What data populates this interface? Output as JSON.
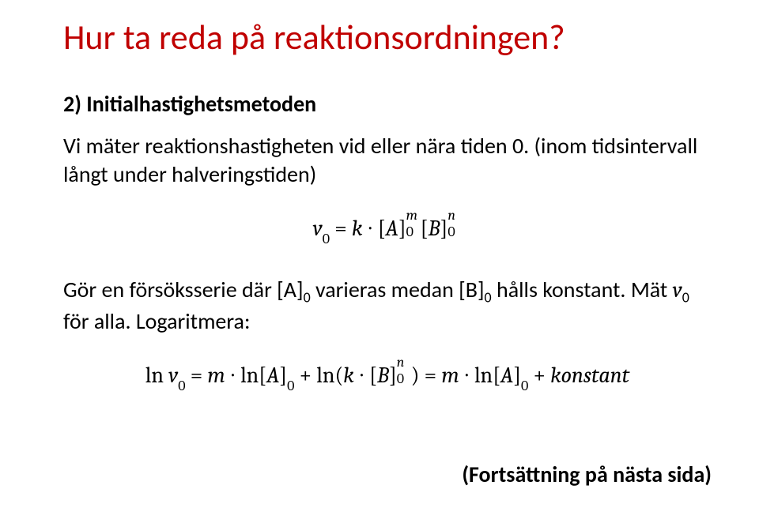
{
  "title": {
    "text": "Hur ta reda på reaktionsordningen?",
    "color": "#c00000",
    "fontsize": 44
  },
  "subheading": {
    "text": "2) Initialhastighetsmetoden",
    "fontsize": 28,
    "fontweight": "bold"
  },
  "para1": {
    "text": "Vi mäter reaktionshastigheten vid eller nära tiden 0. (inom tidsintervall långt under halveringstiden)",
    "fontsize": 28
  },
  "eq1": {
    "v": "v",
    "sub0a": "0",
    "eq": " = ",
    "k": "k",
    "dot1": " ∙ ",
    "lbA": "[",
    "A": "A",
    "rbA": "]",
    "A_sub": "0",
    "A_sup": "m",
    "lbB": "[",
    "B": "B",
    "rbB": "]",
    "B_sub": "0",
    "B_sup": "n"
  },
  "para2_a": "Gör en försöksserie där [A]",
  "para2_sub0a": "0",
  "para2_b": " varieras medan [B]",
  "para2_sub0b": "0",
  "para2_c": " hålls konstant. Mät ",
  "para2_v": "v",
  "para2_sub0c": "0",
  "para2_d": " för alla. Logaritmera:",
  "eq2": {
    "ln1": "ln ",
    "v": "v",
    "sub0a": "0",
    "eq1": " = ",
    "m": "m",
    "dot1": " ∙ ",
    "ln2": "ln",
    "lbA1": "[",
    "A1": "A",
    "rbA1": "]",
    "Asub1": "0",
    "plus": " + ",
    "ln3": "ln(",
    "k": "k",
    "dot2": " ∙ ",
    "lbB": "[",
    "B": "B",
    "rbB": "]",
    "B_sub": "0",
    "B_sup": "n",
    "rp": ")",
    "eq2": " = ",
    "m2": "m",
    "dot3": " ∙ ",
    "ln4": "ln",
    "lbA2": "[",
    "A2": "A",
    "rbA2": "]",
    "Asub2": "0",
    "plus2": " + ",
    "konst": "konstant"
  },
  "footer": {
    "text": "(Fortsättning på nästa sida)",
    "fontsize": 28,
    "fontweight": "bold"
  },
  "colors": {
    "title": "#c00000",
    "body": "#000000",
    "background": "#ffffff"
  }
}
